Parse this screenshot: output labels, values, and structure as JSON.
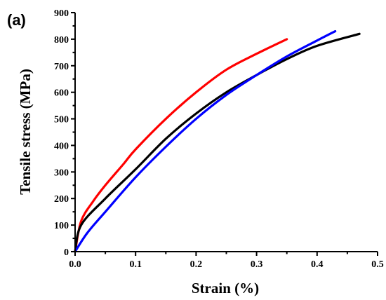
{
  "chart_data": {
    "type": "line",
    "panel_label": "(a)",
    "xlabel": "Strain (%)",
    "ylabel": "Tensile stress (MPa)",
    "xlim": [
      0.0,
      0.5
    ],
    "ylim": [
      0,
      900
    ],
    "x_ticks": [
      "0.0",
      "0.1",
      "0.2",
      "0.3",
      "0.4",
      "0.5"
    ],
    "y_ticks": [
      "0",
      "100",
      "200",
      "300",
      "400",
      "500",
      "600",
      "700",
      "800",
      "900"
    ],
    "grid": false,
    "legend": "none",
    "series": [
      {
        "color": "#ff0000",
        "x": [
          0.0,
          0.01,
          0.03,
          0.05,
          0.08,
          0.1,
          0.15,
          0.2,
          0.25,
          0.3,
          0.35
        ],
        "y": [
          0,
          115,
          190,
          250,
          330,
          385,
          500,
          600,
          685,
          745,
          800
        ]
      },
      {
        "color": "#000000",
        "x": [
          0.0,
          0.01,
          0.05,
          0.1,
          0.15,
          0.2,
          0.25,
          0.3,
          0.35,
          0.4,
          0.47
        ],
        "y": [
          0,
          100,
          200,
          310,
          425,
          520,
          600,
          665,
          725,
          775,
          820
        ]
      },
      {
        "color": "#0000ff",
        "x": [
          0.0,
          0.02,
          0.05,
          0.1,
          0.15,
          0.2,
          0.25,
          0.3,
          0.35,
          0.4,
          0.43
        ],
        "y": [
          0,
          70,
          150,
          280,
          395,
          500,
          590,
          665,
          735,
          795,
          830
        ]
      }
    ]
  }
}
